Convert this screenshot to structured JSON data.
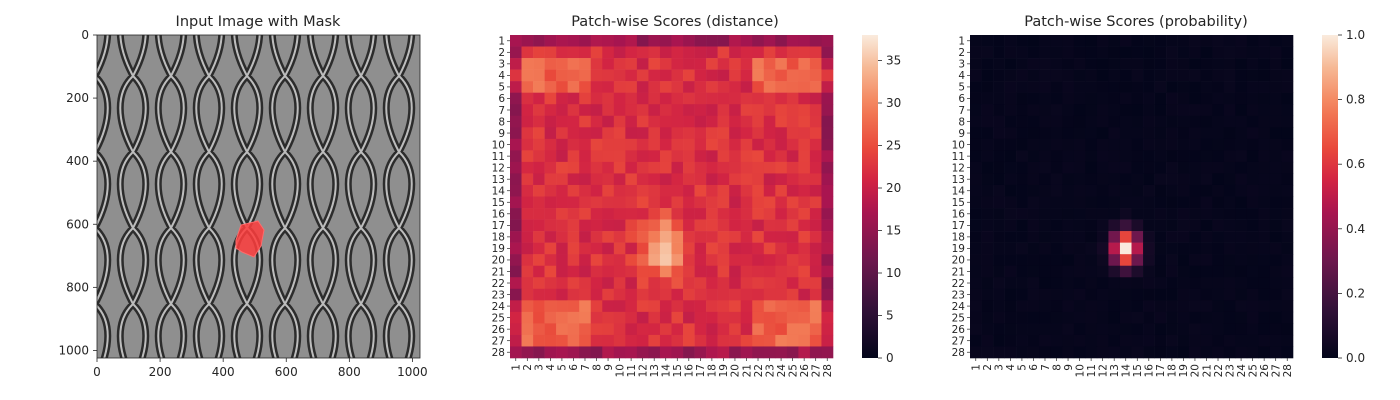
{
  "chart_data": [
    {
      "type": "image",
      "title": "Input Image with Mask",
      "xlim": [
        0,
        1024
      ],
      "ylim": [
        1024,
        0
      ],
      "xticks": [
        0,
        200,
        400,
        600,
        800,
        1000
      ],
      "yticks": [
        0,
        200,
        400,
        600,
        800,
        1000
      ],
      "mask_region": {
        "x_range": [
          430,
          530
        ],
        "y_range": [
          585,
          690
        ],
        "color": "#ff3b3b"
      },
      "background": "grayscale metal mesh texture"
    },
    {
      "type": "heatmap",
      "title": "Patch-wise Scores (distance)",
      "rows": 28,
      "cols": 28,
      "row_labels": [
        "1",
        "2",
        "3",
        "4",
        "5",
        "6",
        "7",
        "8",
        "9",
        "10",
        "11",
        "12",
        "13",
        "14",
        "15",
        "16",
        "17",
        "18",
        "19",
        "20",
        "21",
        "22",
        "23",
        "24",
        "25",
        "26",
        "27",
        "28"
      ],
      "col_labels": [
        "1",
        "2",
        "3",
        "4",
        "5",
        "6",
        "7",
        "8",
        "9",
        "10",
        "11",
        "12",
        "13",
        "14",
        "15",
        "16",
        "17",
        "18",
        "19",
        "20",
        "21",
        "22",
        "23",
        "24",
        "25",
        "26",
        "27",
        "28"
      ],
      "vmin": 0,
      "vmax": 38,
      "colorbar_ticks": [
        0,
        5,
        10,
        15,
        20,
        25,
        30,
        35
      ],
      "colormap": "rocket",
      "hotspot": {
        "row": 19,
        "col": 14,
        "peak": 37
      },
      "baseline": 22
    },
    {
      "type": "heatmap",
      "title": "Patch-wise Scores (probability)",
      "rows": 28,
      "cols": 28,
      "row_labels": [
        "1",
        "2",
        "3",
        "4",
        "5",
        "6",
        "7",
        "8",
        "9",
        "10",
        "11",
        "12",
        "13",
        "14",
        "15",
        "16",
        "17",
        "18",
        "19",
        "20",
        "21",
        "22",
        "23",
        "24",
        "25",
        "26",
        "27",
        "28"
      ],
      "col_labels": [
        "1",
        "2",
        "3",
        "4",
        "5",
        "6",
        "7",
        "8",
        "9",
        "10",
        "11",
        "12",
        "13",
        "14",
        "15",
        "16",
        "17",
        "18",
        "19",
        "20",
        "21",
        "22",
        "23",
        "24",
        "25",
        "26",
        "27",
        "28"
      ],
      "vmin": 0,
      "vmax": 1,
      "colorbar_ticks": [
        "0.0",
        "0.2",
        "0.4",
        "0.6",
        "0.8",
        "1.0"
      ],
      "colormap": "rocket",
      "hotspot": {
        "row": 19,
        "col": 14,
        "peak": 1.0
      },
      "baseline": 0.02
    }
  ]
}
